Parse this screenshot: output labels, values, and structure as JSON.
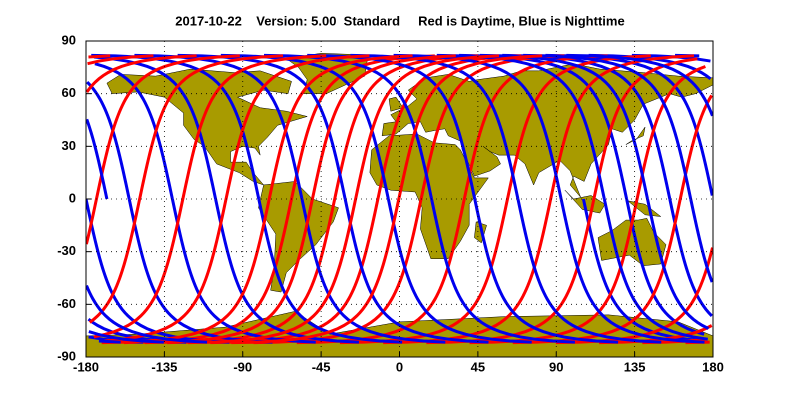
{
  "chart_data": {
    "type": "map",
    "title": "2017-10-22    Version: 5.00  Standard     Red is Daytime, Blue is Nighttime",
    "xlim": [
      -180,
      180
    ],
    "ylim": [
      -90,
      90
    ],
    "xticks": [
      -180,
      -135,
      -90,
      -45,
      0,
      45,
      90,
      135,
      180
    ],
    "yticks": [
      -90,
      -60,
      -30,
      0,
      30,
      60,
      90
    ],
    "grid": true,
    "land_color": "#a89b00",
    "day_color": "#ff0000",
    "night_color": "#0000ee"
  }
}
